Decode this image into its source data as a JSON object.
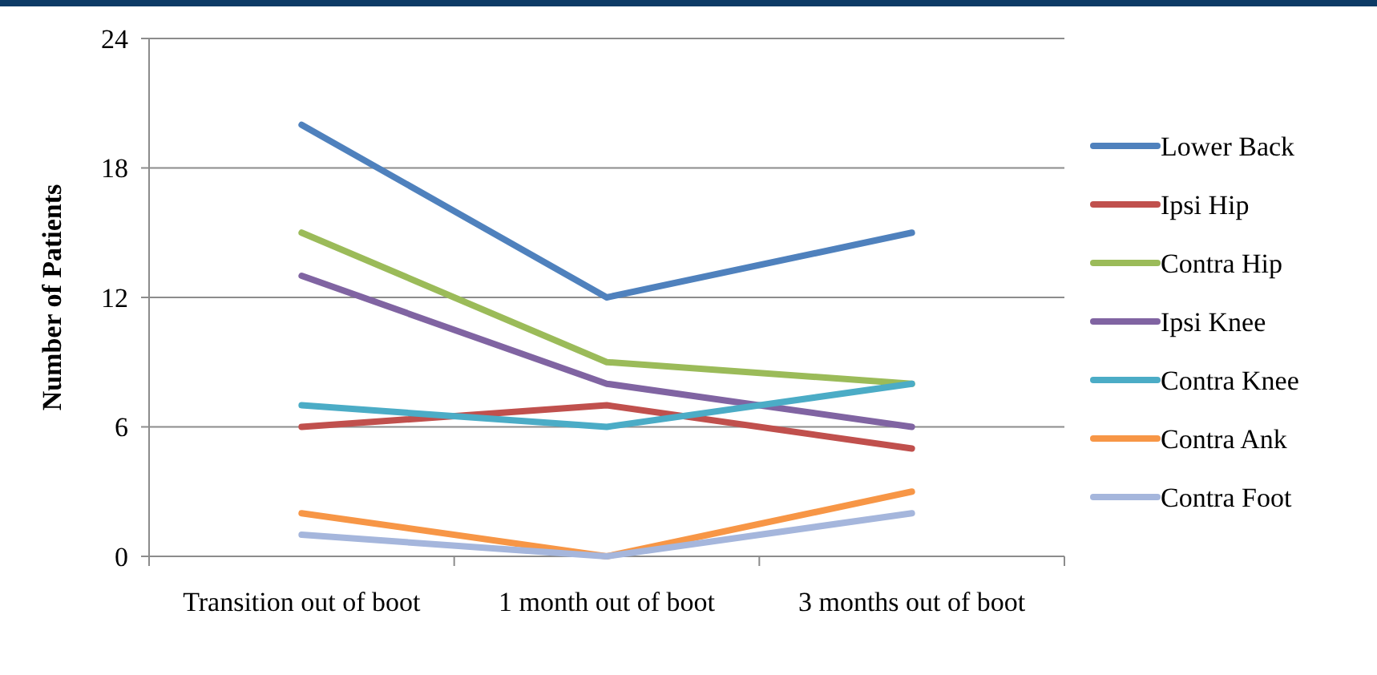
{
  "chart_data": {
    "type": "line",
    "ylabel": "Number of Patients",
    "categories": [
      "Transition out of boot",
      "1 month out of boot",
      "3 months out of boot"
    ],
    "series": [
      {
        "name": "Lower Back",
        "color": "#4f81bd",
        "values": [
          20,
          12,
          15
        ]
      },
      {
        "name": "Ipsi Hip",
        "color": "#c0504d",
        "values": [
          6,
          7,
          5
        ]
      },
      {
        "name": "Contra Hip",
        "color": "#9bbb59",
        "values": [
          15,
          9,
          8
        ]
      },
      {
        "name": "Ipsi Knee",
        "color": "#8064a2",
        "values": [
          13,
          8,
          6
        ]
      },
      {
        "name": "Contra Knee",
        "color": "#4bacc6",
        "values": [
          7,
          6,
          8
        ]
      },
      {
        "name": "Contra Ank",
        "color": "#f79646",
        "values": [
          2,
          0,
          3
        ]
      },
      {
        "name": "Contra Foot",
        "color": "#a5b6dc",
        "values": [
          1,
          0,
          2
        ]
      }
    ],
    "ylim": [
      0,
      24
    ],
    "yticks": [
      0,
      6,
      12,
      18,
      24
    ],
    "grid": "y",
    "legend": "right",
    "marker": "none",
    "line_style": "solid"
  }
}
